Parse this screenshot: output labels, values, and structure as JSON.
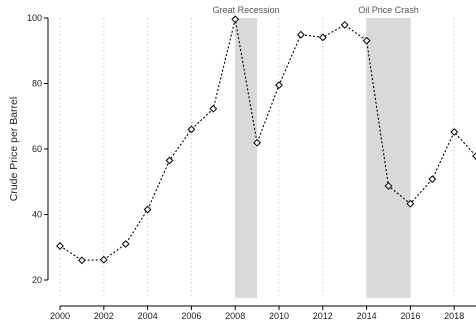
{
  "chart_data": {
    "type": "line",
    "title": "",
    "xlabel": "",
    "ylabel": "Crude Price per Barrel",
    "x": [
      2000,
      2001,
      2002,
      2003,
      2004,
      2005,
      2006,
      2007,
      2008,
      2009,
      2010,
      2011,
      2012,
      2013,
      2014,
      2015,
      2016,
      2017,
      2018,
      2019
    ],
    "series": [
      {
        "values": [
          30.4,
          26.0,
          26.2,
          31.0,
          41.5,
          56.5,
          66.0,
          72.3,
          99.6,
          61.9,
          79.5,
          94.9,
          94.1,
          97.9,
          93.1,
          48.7,
          43.3,
          50.8,
          65.2,
          57.8
        ]
      }
    ],
    "shaded_periods": [
      {
        "label": "Great Recession",
        "start": 2008,
        "end": 2009
      },
      {
        "label": "Oil Price Crash",
        "start": 2014,
        "end": 2016
      }
    ],
    "xticks": [
      "2000",
      "2002",
      "2004",
      "2006",
      "2008",
      "2010",
      "2012",
      "2014",
      "2016",
      "2018"
    ],
    "yticks": [
      "20",
      "40",
      "60",
      "80",
      "100"
    ],
    "xlim": [
      2000,
      2019
    ],
    "ylim": [
      20,
      100
    ],
    "vertical_grid": "dotted",
    "line_style": "dotted",
    "marker": "hollow-diamond",
    "legend": "none",
    "colors": {
      "line": "#000000",
      "band": "#d9d9d9",
      "grid": "#cfcfcf"
    }
  }
}
